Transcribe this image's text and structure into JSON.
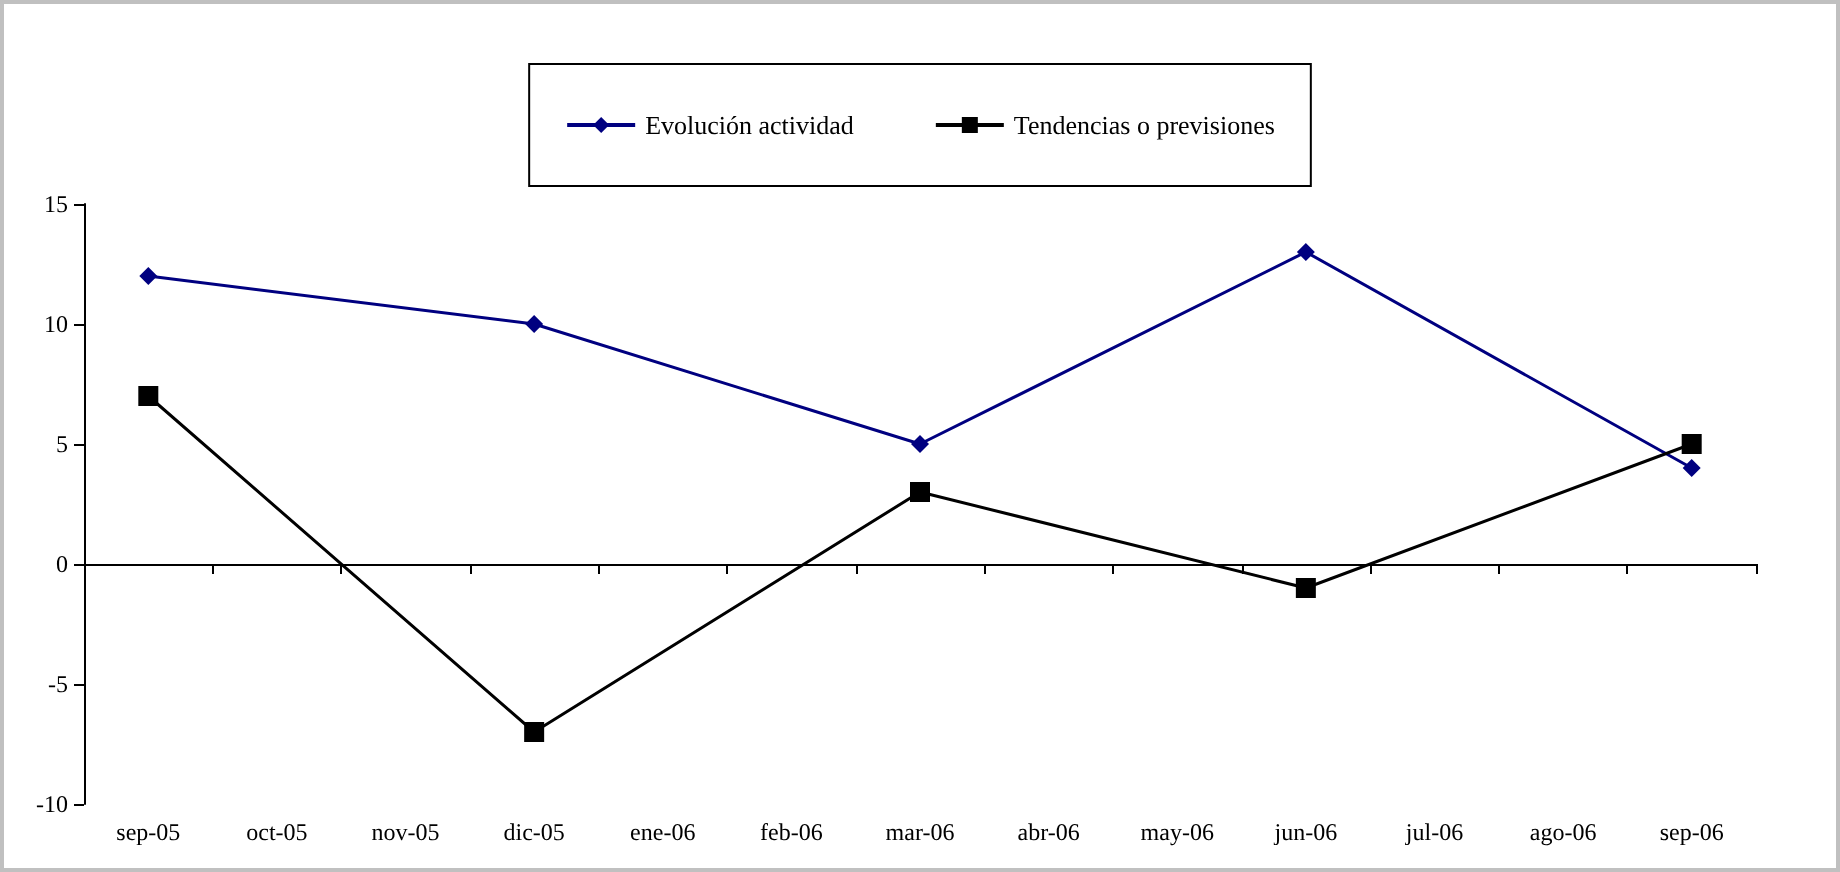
{
  "chart_data": {
    "type": "line",
    "categories": [
      "sep-05",
      "oct-05",
      "nov-05",
      "dic-05",
      "ene-06",
      "feb-06",
      "mar-06",
      "abr-06",
      "may-06",
      "jun-06",
      "jul-06",
      "ago-06",
      "sep-06"
    ],
    "series": [
      {
        "name": "Evolución actividad",
        "color": "#000080",
        "marker": "diamond",
        "values": [
          12,
          null,
          null,
          10,
          null,
          null,
          5,
          null,
          null,
          13,
          null,
          null,
          4
        ]
      },
      {
        "name": "Tendencias o previsiones",
        "color": "#000000",
        "marker": "square",
        "values": [
          7,
          null,
          null,
          -7,
          null,
          null,
          3,
          null,
          null,
          -1,
          null,
          null,
          5
        ]
      }
    ],
    "ylim": [
      -10,
      15
    ],
    "yticks": [
      -10,
      -5,
      0,
      5,
      10,
      15
    ],
    "legend": "top",
    "line_style": "solid"
  }
}
